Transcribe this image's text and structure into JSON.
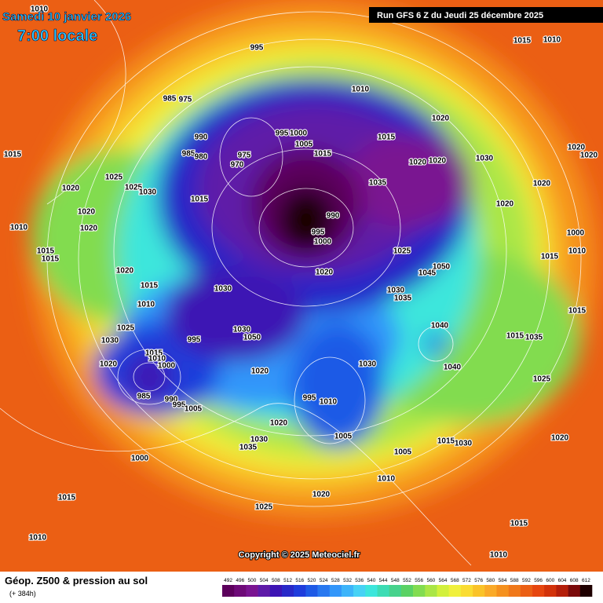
{
  "header": {
    "valid_date": "Samedi 10 janvier 2026",
    "valid_time": "7:00 locale",
    "run": "Run GFS 6 Z du Jeudi 25 décembre 2025"
  },
  "map": {
    "copyright": "Copyright © 2025 Meteociel.fr",
    "isobar_labels": [
      1010,
      995,
      1015,
      1010,
      1010,
      985,
      975,
      1015,
      990,
      985,
      980,
      975,
      970,
      995,
      1000,
      1005,
      1015,
      1015,
      1020,
      1020,
      1020,
      1030,
      1020,
      1020,
      1025,
      1025,
      1030,
      1020,
      1020,
      1020,
      1010,
      1015,
      1015,
      1015,
      990,
      995,
      1000,
      1035,
      1020,
      1020,
      1000,
      1015,
      1010,
      1025,
      1020,
      1020,
      1045,
      1050,
      1015,
      1030,
      1030,
      1035,
      1010,
      1015,
      1025,
      1030,
      995,
      1030,
      1050,
      1040,
      1015,
      1035,
      1015,
      1010,
      1000,
      1020,
      1030,
      1040,
      1020,
      1025,
      985,
      990,
      995,
      1005,
      995,
      1010,
      1020,
      1005,
      1015,
      1030,
      1030,
      1035,
      1005,
      1020,
      1000,
      1010,
      1020,
      1015,
      1025,
      1010,
      1010,
      1015
    ]
  },
  "legend": {
    "title": "Géop. Z500 & pression au sol",
    "lead": "(+ 384h)",
    "levels": [
      492,
      496,
      500,
      504,
      508,
      512,
      516,
      520,
      524,
      528,
      532,
      536,
      540,
      544,
      548,
      552,
      556,
      560,
      564,
      568,
      572,
      576,
      580,
      584,
      588,
      592,
      596,
      600,
      604,
      608,
      612
    ],
    "colors": [
      "#5c005c",
      "#6e0a78",
      "#7a1491",
      "#5e1aa8",
      "#3c14b4",
      "#2828c8",
      "#1e3cdc",
      "#1e5ae6",
      "#2878f0",
      "#3296fa",
      "#3cb4fa",
      "#46d2f5",
      "#3ce6dc",
      "#3cdcb4",
      "#46d28c",
      "#5ad264",
      "#82dc50",
      "#aae646",
      "#d2f03c",
      "#f0f03c",
      "#fadc32",
      "#fac328",
      "#faaa28",
      "#f5911e",
      "#f07819",
      "#eb5f14",
      "#e6460f",
      "#d2320a",
      "#b41e0a",
      "#7a0a0a",
      "#1e0000"
    ]
  }
}
